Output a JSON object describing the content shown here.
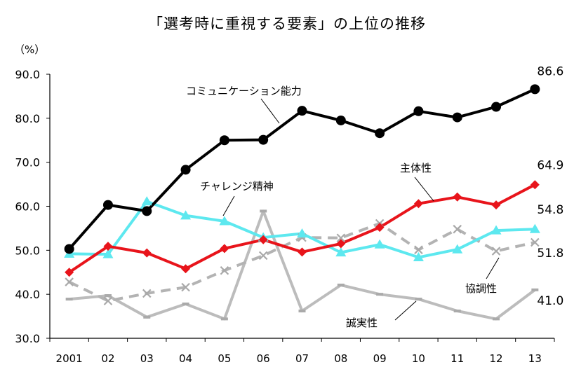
{
  "chart_data": {
    "type": "line",
    "title": "「選考時に重視する要素」の上位の推移",
    "ylabel": "（%）",
    "xlabel": "",
    "ylim": [
      30,
      90
    ],
    "yticks": [
      "30.0",
      "40.0",
      "50.0",
      "60.0",
      "70.0",
      "80.0",
      "90.0"
    ],
    "categories": [
      "2001",
      "02",
      "03",
      "04",
      "05",
      "06",
      "07",
      "08",
      "09",
      "10",
      "11",
      "12",
      "13"
    ],
    "grid": false,
    "series": [
      {
        "name": "コミュニケーション能力",
        "color": "#000000",
        "marker": "circle",
        "dashed": false,
        "values": [
          50.3,
          60.3,
          58.9,
          68.3,
          75.0,
          75.1,
          81.7,
          79.5,
          76.6,
          81.6,
          80.2,
          82.6,
          86.6
        ],
        "end_label": "86.6"
      },
      {
        "name": "主体性",
        "color": "#e8141b",
        "marker": "diamond",
        "dashed": false,
        "values": [
          45.0,
          50.9,
          49.4,
          45.8,
          50.4,
          52.4,
          49.6,
          51.5,
          55.2,
          60.6,
          62.1,
          60.3,
          64.9
        ],
        "end_label": "64.9"
      },
      {
        "name": "チャレンジ精神",
        "color": "#5de8ef",
        "marker": "triangle",
        "dashed": false,
        "values": [
          49.2,
          49.1,
          61.1,
          57.9,
          56.6,
          52.9,
          53.8,
          49.5,
          51.3,
          48.4,
          50.2,
          54.5,
          54.8
        ],
        "end_label": "54.8"
      },
      {
        "name": "協調性",
        "color": "#b3b3b3",
        "marker": "x",
        "dashed": true,
        "values": [
          42.8,
          38.5,
          40.2,
          41.6,
          45.4,
          48.8,
          52.9,
          52.8,
          56.1,
          50.1,
          54.8,
          49.8,
          51.8
        ],
        "end_label": "51.8"
      },
      {
        "name": "誠実性",
        "color": "#bcbcbc",
        "marker": "dash",
        "dashed": false,
        "values": [
          38.9,
          39.7,
          34.8,
          37.8,
          34.4,
          58.9,
          36.2,
          42.1,
          40.0,
          38.9,
          36.2,
          34.4,
          41.0
        ],
        "end_label": "41.0"
      }
    ],
    "annotations": [
      {
        "text": "コミュニケーション能力",
        "series": 0
      },
      {
        "text": "主体性",
        "series": 1
      },
      {
        "text": "チャレンジ精神",
        "series": 2
      },
      {
        "text": "協調性",
        "series": 3
      },
      {
        "text": "誠実性",
        "series": 4
      }
    ]
  }
}
